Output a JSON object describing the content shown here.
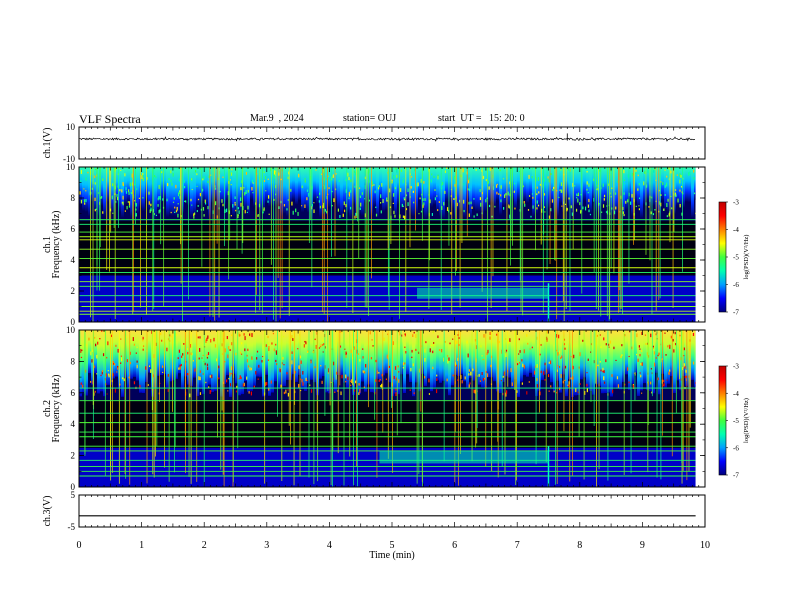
{
  "header": {
    "title": "VLF Spectra",
    "date": "Mar.9  , 2024",
    "station": "station= OUJ",
    "start": "start  UT =   15: 20: 0"
  },
  "chart_data": {
    "type": "heatmap",
    "panels": [
      {
        "name": "waveform-ch1",
        "kind": "line",
        "ylabel": "ch.1(V)",
        "ylim": [
          -10,
          10
        ],
        "yticks": [
          "10",
          "-10"
        ],
        "baseline": 2.5,
        "noise_amplitude": 0.6,
        "spike_at_min": 7.8
      },
      {
        "name": "spectrogram-ch1",
        "kind": "heatmap",
        "ylabel": "ch.1\nFrequency (kHz)",
        "ylim": [
          0,
          10
        ],
        "yticks": [
          "0",
          "2",
          "4",
          "6",
          "8",
          "10"
        ],
        "description_layers": {
          "bright_top_band_kHz": [
            6.5,
            10
          ],
          "dark_band_kHz": [
            3.0,
            6.5
          ],
          "horizontal_lines_kHz": [
            0.5,
            0.7,
            1.0,
            1.3,
            1.7,
            2.3,
            2.6,
            3.2,
            3.5,
            4.1,
            4.7,
            5.3,
            5.5,
            5.8,
            6.3,
            6.6
          ],
          "emission_band": {
            "start_min": 5.4,
            "end_min": 7.5,
            "freq_low_kHz": 1.5,
            "freq_high_kHz": 2.2
          }
        },
        "colorbar": {
          "label": "log(PSD)(V²/Hz)",
          "min": -7,
          "max": -3,
          "ticks": [
            "-3",
            "-4",
            "-5",
            "-6",
            "-7"
          ]
        }
      },
      {
        "name": "spectrogram-ch2",
        "kind": "heatmap",
        "ylabel": "ch.2\nFrequency (kHz)",
        "ylim": [
          0,
          10
        ],
        "yticks": [
          "0",
          "2",
          "4",
          "6",
          "8",
          "10"
        ],
        "description_layers": {
          "bright_top_band_kHz": [
            5.5,
            10
          ],
          "dark_band_kHz": [
            2.5,
            5.5
          ],
          "horizontal_lines_kHz": [
            0.7,
            1.0,
            1.3,
            1.7,
            2.3,
            2.6,
            3.2,
            3.5,
            4.1,
            4.7,
            5.5,
            6.3
          ],
          "emission_band": {
            "start_min": 4.8,
            "end_min": 7.5,
            "freq_low_kHz": 1.5,
            "freq_high_kHz": 2.3
          }
        },
        "colorbar": {
          "label": "log(PSD)(V²/Hz)",
          "min": -7,
          "max": -3,
          "ticks": [
            "-3",
            "-4",
            "-5",
            "-6",
            "-7"
          ]
        }
      },
      {
        "name": "waveform-ch3",
        "kind": "line",
        "ylabel": "ch.3(V)",
        "ylim": [
          -5,
          5
        ],
        "yticks": [
          "5",
          "-5"
        ],
        "baseline": -1.5,
        "noise_amplitude": 0
      }
    ],
    "x": {
      "label": "Time (min)",
      "range": [
        0,
        10
      ],
      "ticks": [
        "0",
        "1",
        "2",
        "3",
        "4",
        "5",
        "6",
        "7",
        "8",
        "9",
        "10"
      ],
      "data_end_min": 9.85
    },
    "colors": {
      "scale": [
        "#00007f",
        "#0000ff",
        "#00a0ff",
        "#00ffb0",
        "#40ff40",
        "#ffff00",
        "#ff8000",
        "#ff0000",
        "#c00000"
      ],
      "background_dark": "#000000",
      "axis": "#000000"
    }
  }
}
